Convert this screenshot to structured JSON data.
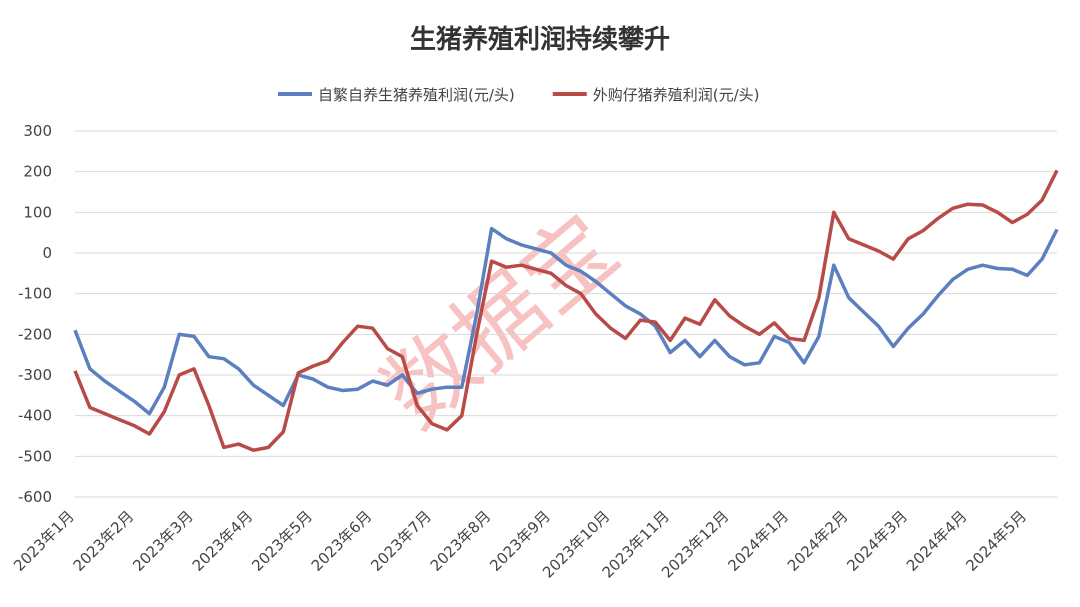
{
  "chart_data": {
    "type": "line",
    "title": "生猪养殖利润持续攀升",
    "watermark": "数据宝",
    "categories": [
      "2023年1月",
      null,
      null,
      null,
      "2023年2月",
      null,
      null,
      null,
      "2023年3月",
      null,
      null,
      null,
      "2023年4月",
      null,
      null,
      null,
      "2023年5月",
      null,
      null,
      null,
      "2023年6月",
      null,
      null,
      null,
      "2023年7月",
      null,
      null,
      null,
      "2023年8月",
      null,
      null,
      null,
      "2023年9月",
      null,
      null,
      null,
      "2023年10月",
      null,
      null,
      null,
      "2023年11月",
      null,
      null,
      null,
      "2023年12月",
      null,
      null,
      null,
      "2024年1月",
      null,
      null,
      null,
      "2024年2月",
      null,
      null,
      null,
      "2024年3月",
      null,
      null,
      null,
      "2024年4月",
      null,
      null,
      null,
      "2024年5月",
      null,
      null
    ],
    "series": [
      {
        "name": "自繁自养生猪养殖利润(元/头)",
        "color": "#5b7fbf",
        "values": [
          -190,
          -285,
          -315,
          -340,
          -365,
          -395,
          -330,
          -200,
          -205,
          -255,
          -260,
          -285,
          -325,
          -350,
          -375,
          -300,
          -310,
          -330,
          -338,
          -335,
          -315,
          -325,
          -300,
          -345,
          -335,
          -330,
          -330,
          -150,
          60,
          35,
          20,
          10,
          0,
          -30,
          -45,
          -70,
          -100,
          -130,
          -150,
          -180,
          -245,
          -215,
          -255,
          -215,
          -255,
          -275,
          -270,
          -205,
          -220,
          -270,
          -205,
          -30,
          -110,
          -145,
          -180,
          -230,
          -185,
          -150,
          -105,
          -65,
          -40,
          -30,
          -38,
          -40,
          -55,
          -15,
          58
        ]
      },
      {
        "name": "外购仔猪养殖利润(元/头)",
        "color": "#b84a47",
        "values": [
          -290,
          -380,
          -395,
          -410,
          -425,
          -445,
          -390,
          -300,
          -285,
          -375,
          -478,
          -470,
          -485,
          -478,
          -440,
          -295,
          -278,
          -265,
          -220,
          -180,
          -185,
          -235,
          -255,
          -375,
          -420,
          -435,
          -400,
          -200,
          -20,
          -35,
          -30,
          -40,
          -50,
          -80,
          -100,
          -150,
          -185,
          -210,
          -165,
          -170,
          -215,
          -160,
          -175,
          -115,
          -155,
          -180,
          -200,
          -172,
          -210,
          -215,
          -110,
          100,
          35,
          20,
          5,
          -15,
          35,
          55,
          85,
          110,
          120,
          118,
          100,
          75,
          95,
          130,
          203
        ]
      }
    ],
    "ylim": [
      -600,
      300
    ],
    "yticks": [
      -600,
      -500,
      -400,
      -300,
      -200,
      -100,
      0,
      100,
      200,
      300
    ],
    "grid": true,
    "legend": "top"
  }
}
